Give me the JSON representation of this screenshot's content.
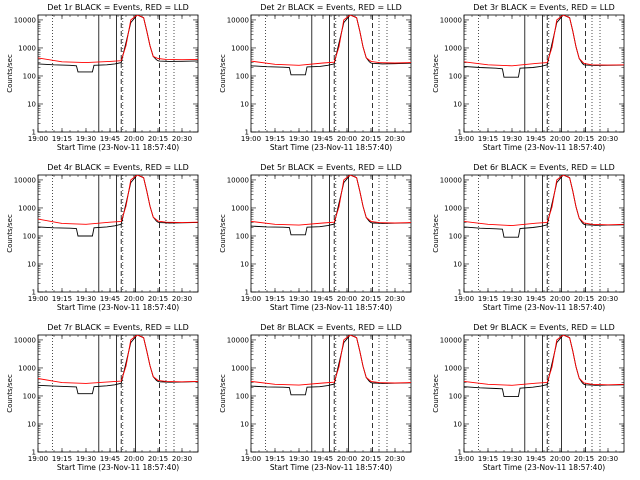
{
  "chart_data": {
    "type": "line",
    "y_scale": "log",
    "ylim": [
      1,
      15000
    ],
    "y_ticks": [
      "1",
      "10",
      "100",
      "1000",
      "10000"
    ],
    "x_range": [
      "19:00",
      "20:40"
    ],
    "x_ticks": [
      "19:00",
      "19:15",
      "19:30",
      "19:45",
      "20:00",
      "20:15",
      "20:30"
    ],
    "ylabel": "Counts/sec",
    "xlabel": "Start Time (23-Nov-11 18:57:40)",
    "colors": {
      "events": "#000000",
      "lld": "#ff0000",
      "axis": "#000000"
    },
    "dotted_vlines": [
      "19:09",
      "19:53",
      "20:20",
      "20:25"
    ],
    "solid_vlines": [
      "19:38",
      "19:49",
      "20:01"
    ],
    "dashed_vlines": [
      "19:52",
      "20:16"
    ],
    "panels": [
      {
        "title": "Det 1r BLACK = Events, RED = LLD",
        "events_x": [
          "19:00",
          "19:10",
          "19:20",
          "19:24",
          "19:25",
          "19:34",
          "19:35",
          "19:43",
          "19:48",
          "19:52",
          "19:54",
          "19:58",
          "20:02",
          "20:06",
          "20:08",
          "20:10",
          "20:12",
          "20:14",
          "20:15",
          "20:16",
          "20:20",
          "20:22",
          "20:30",
          "20:40"
        ],
        "events_y": [
          270,
          250,
          240,
          230,
          140,
          140,
          240,
          250,
          270,
          300,
          900,
          8000,
          15000,
          12000,
          4000,
          1200,
          500,
          380,
          350,
          340,
          335,
          330,
          335,
          345
        ],
        "lld_x": [
          "19:00",
          "19:15",
          "19:30",
          "19:45",
          "19:52",
          "19:55",
          "19:58",
          "20:02",
          "20:06",
          "20:08",
          "20:10",
          "20:12",
          "20:15",
          "20:20",
          "20:30",
          "20:40"
        ],
        "lld_y": [
          440,
          320,
          300,
          330,
          350,
          1200,
          10000,
          15000,
          12000,
          4000,
          1200,
          500,
          420,
          390,
          380,
          390
        ]
      },
      {
        "title": "Det 2r BLACK = Events, RED = LLD",
        "events_x": [
          "19:00",
          "19:10",
          "19:20",
          "19:24",
          "19:25",
          "19:34",
          "19:35",
          "19:43",
          "19:48",
          "19:52",
          "19:54",
          "19:58",
          "20:02",
          "20:06",
          "20:08",
          "20:10",
          "20:12",
          "20:14",
          "20:15",
          "20:16",
          "20:20",
          "20:22",
          "20:30",
          "20:40"
        ],
        "events_y": [
          230,
          215,
          205,
          200,
          110,
          110,
          210,
          220,
          240,
          270,
          850,
          8000,
          15000,
          12000,
          4000,
          1100,
          450,
          320,
          290,
          280,
          275,
          270,
          275,
          285
        ],
        "lld_x": [
          "19:00",
          "19:15",
          "19:30",
          "19:45",
          "19:52",
          "19:55",
          "19:58",
          "20:02",
          "20:06",
          "20:08",
          "20:10",
          "20:12",
          "20:15",
          "20:20",
          "20:30",
          "20:40"
        ],
        "lld_y": [
          340,
          260,
          240,
          290,
          310,
          1100,
          10000,
          15000,
          12000,
          4000,
          1100,
          450,
          330,
          300,
          290,
          300
        ]
      },
      {
        "title": "Det 3r BLACK = Events, RED = LLD",
        "events_x": [
          "19:00",
          "19:10",
          "19:20",
          "19:24",
          "19:25",
          "19:34",
          "19:35",
          "19:43",
          "19:48",
          "19:52",
          "19:54",
          "19:58",
          "20:02",
          "20:06",
          "20:08",
          "20:10",
          "20:12",
          "20:14",
          "20:15",
          "20:16",
          "20:20",
          "20:22",
          "20:30",
          "20:40"
        ],
        "events_y": [
          220,
          200,
          190,
          180,
          90,
          90,
          190,
          200,
          220,
          250,
          800,
          8000,
          15000,
          12000,
          4000,
          1100,
          420,
          280,
          250,
          245,
          240,
          238,
          240,
          245
        ],
        "lld_x": [
          "19:00",
          "19:15",
          "19:30",
          "19:45",
          "19:52",
          "19:55",
          "19:58",
          "20:02",
          "20:06",
          "20:08",
          "20:10",
          "20:12",
          "20:15",
          "20:20",
          "20:30",
          "20:40"
        ],
        "lld_y": [
          320,
          250,
          230,
          280,
          300,
          1050,
          10000,
          15000,
          12000,
          4000,
          1100,
          420,
          280,
          250,
          245,
          250
        ]
      },
      {
        "title": "Det 4r BLACK = Events, RED = LLD",
        "events_x": [
          "19:00",
          "19:10",
          "19:20",
          "19:24",
          "19:25",
          "19:34",
          "19:35",
          "19:43",
          "19:48",
          "19:52",
          "19:54",
          "19:58",
          "20:02",
          "20:06",
          "20:08",
          "20:10",
          "20:12",
          "20:14",
          "20:15",
          "20:16",
          "20:20",
          "20:22",
          "20:30",
          "20:40"
        ],
        "events_y": [
          210,
          195,
          190,
          185,
          100,
          100,
          195,
          210,
          230,
          260,
          820,
          8000,
          15000,
          12000,
          4000,
          1150,
          470,
          340,
          310,
          300,
          295,
          290,
          295,
          305
        ],
        "lld_x": [
          "19:00",
          "19:15",
          "19:30",
          "19:45",
          "19:52",
          "19:55",
          "19:58",
          "20:02",
          "20:06",
          "20:08",
          "20:10",
          "20:12",
          "20:15",
          "20:20",
          "20:30",
          "20:40"
        ],
        "lld_y": [
          400,
          280,
          260,
          310,
          330,
          1150,
          10000,
          15000,
          12000,
          4000,
          1150,
          470,
          340,
          310,
          300,
          310
        ]
      },
      {
        "title": "Det 5r BLACK = Events, RED = LLD",
        "events_x": [
          "19:00",
          "19:10",
          "19:20",
          "19:24",
          "19:25",
          "19:34",
          "19:35",
          "19:43",
          "19:48",
          "19:52",
          "19:54",
          "19:58",
          "20:02",
          "20:06",
          "20:08",
          "20:10",
          "20:12",
          "20:14",
          "20:15",
          "20:16",
          "20:20",
          "20:22",
          "20:30",
          "20:40"
        ],
        "events_y": [
          225,
          210,
          205,
          200,
          110,
          110,
          205,
          215,
          235,
          265,
          840,
          8000,
          15000,
          12000,
          4000,
          1150,
          460,
          330,
          300,
          290,
          285,
          280,
          285,
          295
        ],
        "lld_x": [
          "19:00",
          "19:15",
          "19:30",
          "19:45",
          "19:52",
          "19:55",
          "19:58",
          "20:02",
          "20:06",
          "20:08",
          "20:10",
          "20:12",
          "20:15",
          "20:20",
          "20:30",
          "20:40"
        ],
        "lld_y": [
          330,
          260,
          245,
          290,
          310,
          1100,
          10000,
          15000,
          12000,
          4000,
          1150,
          460,
          330,
          300,
          290,
          300
        ]
      },
      {
        "title": "Det 6r BLACK = Events, RED = LLD",
        "events_x": [
          "19:00",
          "19:10",
          "19:20",
          "19:24",
          "19:25",
          "19:34",
          "19:35",
          "19:43",
          "19:48",
          "19:52",
          "19:54",
          "19:58",
          "20:02",
          "20:06",
          "20:08",
          "20:10",
          "20:12",
          "20:14",
          "20:15",
          "20:16",
          "20:20",
          "20:22",
          "20:30",
          "20:40"
        ],
        "events_y": [
          210,
          190,
          180,
          175,
          90,
          90,
          185,
          200,
          220,
          250,
          800,
          8000,
          15000,
          12000,
          4000,
          1100,
          430,
          290,
          260,
          250,
          245,
          240,
          245,
          250
        ],
        "lld_x": [
          "19:00",
          "19:15",
          "19:30",
          "19:45",
          "19:52",
          "19:55",
          "19:58",
          "20:02",
          "20:06",
          "20:08",
          "20:10",
          "20:12",
          "20:15",
          "20:20",
          "20:30",
          "20:40"
        ],
        "lld_y": [
          330,
          260,
          235,
          285,
          305,
          1080,
          10000,
          15000,
          12000,
          4000,
          1100,
          430,
          290,
          260,
          250,
          260
        ]
      },
      {
        "title": "Det 7r BLACK = Events, RED = LLD",
        "events_x": [
          "19:00",
          "19:10",
          "19:20",
          "19:24",
          "19:25",
          "19:34",
          "19:35",
          "19:43",
          "19:48",
          "19:52",
          "19:54",
          "19:58",
          "20:02",
          "20:06",
          "20:08",
          "20:10",
          "20:12",
          "20:14",
          "20:15",
          "20:16",
          "20:20",
          "20:22",
          "20:30",
          "20:40"
        ],
        "events_y": [
          240,
          225,
          215,
          210,
          120,
          120,
          215,
          230,
          250,
          285,
          870,
          8000,
          15000,
          12000,
          4000,
          1200,
          490,
          360,
          330,
          320,
          315,
          310,
          315,
          325
        ],
        "lld_x": [
          "19:00",
          "19:15",
          "19:30",
          "19:45",
          "19:52",
          "19:55",
          "19:58",
          "20:02",
          "20:06",
          "20:08",
          "20:10",
          "20:12",
          "20:15",
          "20:20",
          "20:30",
          "20:40"
        ],
        "lld_y": [
          420,
          300,
          280,
          320,
          340,
          1150,
          10000,
          15000,
          12000,
          4000,
          1200,
          490,
          360,
          330,
          320,
          330
        ]
      },
      {
        "title": "Det 8r BLACK = Events, RED = LLD",
        "events_x": [
          "19:00",
          "19:10",
          "19:20",
          "19:24",
          "19:25",
          "19:34",
          "19:35",
          "19:43",
          "19:48",
          "19:52",
          "19:54",
          "19:58",
          "20:02",
          "20:06",
          "20:08",
          "20:10",
          "20:12",
          "20:14",
          "20:15",
          "20:16",
          "20:20",
          "20:22",
          "20:30",
          "20:40"
        ],
        "events_y": [
          225,
          210,
          205,
          200,
          110,
          110,
          205,
          215,
          235,
          265,
          840,
          8000,
          15000,
          12000,
          4000,
          1150,
          460,
          330,
          300,
          290,
          285,
          280,
          285,
          295
        ],
        "lld_x": [
          "19:00",
          "19:15",
          "19:30",
          "19:45",
          "19:52",
          "19:55",
          "19:58",
          "20:02",
          "20:06",
          "20:08",
          "20:10",
          "20:12",
          "20:15",
          "20:20",
          "20:30",
          "20:40"
        ],
        "lld_y": [
          330,
          260,
          245,
          290,
          310,
          1100,
          10000,
          15000,
          12000,
          4000,
          1150,
          460,
          330,
          300,
          290,
          300
        ]
      },
      {
        "title": "Det 9r BLACK = Events, RED = LLD",
        "events_x": [
          "19:00",
          "19:10",
          "19:20",
          "19:24",
          "19:25",
          "19:34",
          "19:35",
          "19:43",
          "19:48",
          "19:52",
          "19:54",
          "19:58",
          "20:02",
          "20:06",
          "20:08",
          "20:10",
          "20:12",
          "20:14",
          "20:15",
          "20:16",
          "20:20",
          "20:22",
          "20:30",
          "20:40"
        ],
        "events_y": [
          215,
          195,
          185,
          180,
          95,
          95,
          190,
          205,
          225,
          255,
          810,
          8000,
          15000,
          12000,
          4000,
          1100,
          430,
          290,
          260,
          250,
          245,
          240,
          245,
          250
        ],
        "lld_x": [
          "19:00",
          "19:15",
          "19:30",
          "19:45",
          "19:52",
          "19:55",
          "19:58",
          "20:02",
          "20:06",
          "20:08",
          "20:10",
          "20:12",
          "20:15",
          "20:20",
          "20:30",
          "20:40"
        ],
        "lld_y": [
          330,
          260,
          240,
          285,
          305,
          1080,
          10000,
          15000,
          12000,
          4000,
          1100,
          430,
          290,
          260,
          250,
          260
        ]
      }
    ]
  }
}
